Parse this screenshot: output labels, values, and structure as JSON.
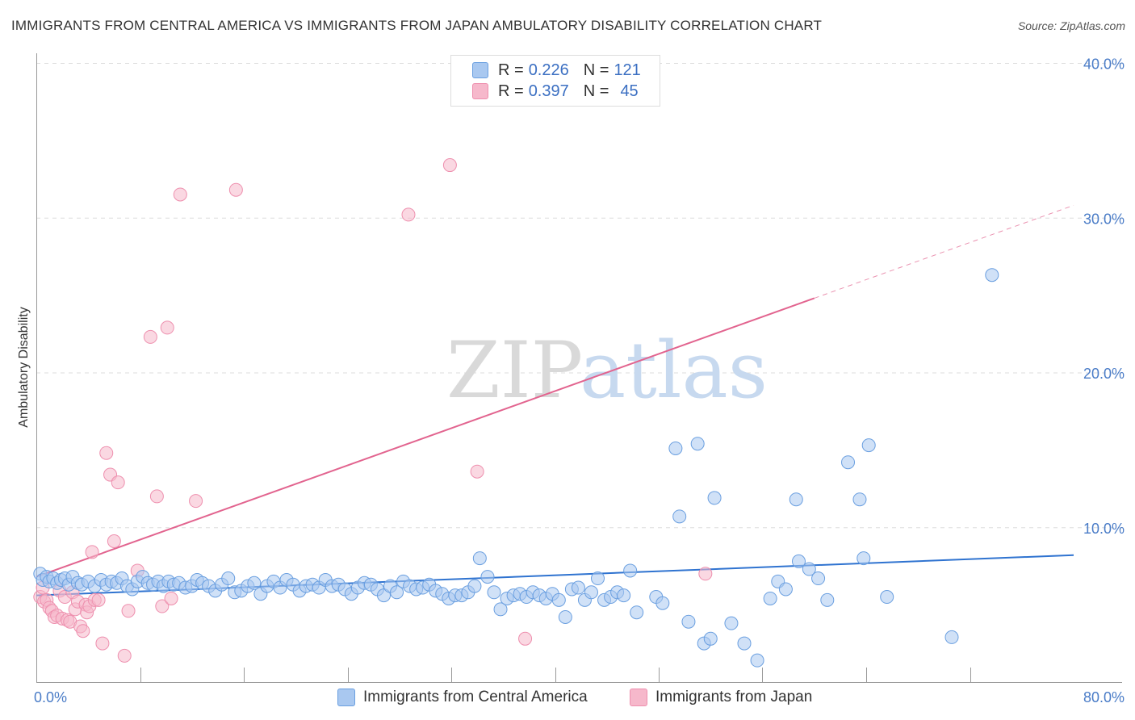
{
  "header": {
    "title": "IMMIGRANTS FROM CENTRAL AMERICA VS IMMIGRANTS FROM JAPAN AMBULATORY DISABILITY CORRELATION CHART",
    "source": "Source: ZipAtlas.com"
  },
  "legend": {
    "series1": {
      "r_label": "R =",
      "r_value": "0.226",
      "n_label": "N =",
      "n_value": "121"
    },
    "series2": {
      "r_label": "R =",
      "r_value": "0.397",
      "n_label": "N =",
      "n_value": "45"
    }
  },
  "watermark": {
    "zip": "ZIP",
    "atlas": "atlas"
  },
  "colors": {
    "blue_fill": "#a9c8f0",
    "blue_stroke": "#6a9fe0",
    "blue_line": "#2f73d0",
    "pink_fill": "#f6b8cb",
    "pink_stroke": "#ee8fae",
    "pink_line": "#e2648f",
    "grid": "#dddddd",
    "tick_text": "#4a7cc7"
  },
  "chart_data": {
    "type": "scatter",
    "title": "IMMIGRANTS FROM CENTRAL AMERICA VS IMMIGRANTS FROM JAPAN AMBULATORY DISABILITY CORRELATION CHART",
    "xlabel": "",
    "ylabel": "Ambulatory Disability",
    "xlim": [
      0,
      80
    ],
    "ylim": [
      0,
      40
    ],
    "x_tick_labels": {
      "left": "0.0%",
      "right": "80.0%"
    },
    "y_ticks": [
      10,
      20,
      30,
      40
    ],
    "y_tick_labels": [
      "10.0%",
      "20.0%",
      "30.0%",
      "40.0%"
    ],
    "legend_position": "bottom-center",
    "series": [
      {
        "name": "Immigrants from Central America",
        "color": "blue",
        "R": 0.226,
        "N": 121,
        "trend": {
          "x": [
            0,
            80
          ],
          "y": [
            5.6,
            8.2
          ],
          "style": "solid"
        },
        "points": [
          [
            0.3,
            7.0
          ],
          [
            0.5,
            6.6
          ],
          [
            0.8,
            6.8
          ],
          [
            1.0,
            6.5
          ],
          [
            1.3,
            6.7
          ],
          [
            1.6,
            6.4
          ],
          [
            1.9,
            6.6
          ],
          [
            2.2,
            6.7
          ],
          [
            2.5,
            6.3
          ],
          [
            2.8,
            6.8
          ],
          [
            3.2,
            6.4
          ],
          [
            3.5,
            6.3
          ],
          [
            4.0,
            6.5
          ],
          [
            4.5,
            6.2
          ],
          [
            5.0,
            6.6
          ],
          [
            5.4,
            6.3
          ],
          [
            5.8,
            6.5
          ],
          [
            6.2,
            6.4
          ],
          [
            6.6,
            6.7
          ],
          [
            7.0,
            6.2
          ],
          [
            7.4,
            6.0
          ],
          [
            7.8,
            6.5
          ],
          [
            8.2,
            6.8
          ],
          [
            8.6,
            6.4
          ],
          [
            9.0,
            6.3
          ],
          [
            9.4,
            6.5
          ],
          [
            9.8,
            6.2
          ],
          [
            10.2,
            6.5
          ],
          [
            10.6,
            6.3
          ],
          [
            11.0,
            6.4
          ],
          [
            11.5,
            6.1
          ],
          [
            12.0,
            6.2
          ],
          [
            12.4,
            6.6
          ],
          [
            12.8,
            6.4
          ],
          [
            13.3,
            6.2
          ],
          [
            13.8,
            5.9
          ],
          [
            14.3,
            6.3
          ],
          [
            14.8,
            6.7
          ],
          [
            15.3,
            5.8
          ],
          [
            15.8,
            5.9
          ],
          [
            16.3,
            6.2
          ],
          [
            16.8,
            6.4
          ],
          [
            17.3,
            5.7
          ],
          [
            17.8,
            6.2
          ],
          [
            18.3,
            6.5
          ],
          [
            18.8,
            6.1
          ],
          [
            19.3,
            6.6
          ],
          [
            19.8,
            6.3
          ],
          [
            20.3,
            5.9
          ],
          [
            20.8,
            6.2
          ],
          [
            21.3,
            6.3
          ],
          [
            21.8,
            6.1
          ],
          [
            22.3,
            6.6
          ],
          [
            22.8,
            6.2
          ],
          [
            23.3,
            6.3
          ],
          [
            23.8,
            6.0
          ],
          [
            24.3,
            5.7
          ],
          [
            24.8,
            6.1
          ],
          [
            25.3,
            6.4
          ],
          [
            25.8,
            6.3
          ],
          [
            26.3,
            6.0
          ],
          [
            26.8,
            5.6
          ],
          [
            27.3,
            6.2
          ],
          [
            27.8,
            5.8
          ],
          [
            28.3,
            6.5
          ],
          [
            28.8,
            6.2
          ],
          [
            29.3,
            6.0
          ],
          [
            29.8,
            6.1
          ],
          [
            30.3,
            6.3
          ],
          [
            30.8,
            5.9
          ],
          [
            31.3,
            5.7
          ],
          [
            31.8,
            5.4
          ],
          [
            32.3,
            5.6
          ],
          [
            32.8,
            5.6
          ],
          [
            33.3,
            5.8
          ],
          [
            33.8,
            6.2
          ],
          [
            34.2,
            8.0
          ],
          [
            34.8,
            6.8
          ],
          [
            35.3,
            5.8
          ],
          [
            35.8,
            4.7
          ],
          [
            36.3,
            5.4
          ],
          [
            36.8,
            5.6
          ],
          [
            37.3,
            5.7
          ],
          [
            37.8,
            5.5
          ],
          [
            38.3,
            5.8
          ],
          [
            38.8,
            5.6
          ],
          [
            39.3,
            5.4
          ],
          [
            39.8,
            5.7
          ],
          [
            40.3,
            5.3
          ],
          [
            40.8,
            4.2
          ],
          [
            41.3,
            6.0
          ],
          [
            41.8,
            6.1
          ],
          [
            42.3,
            5.3
          ],
          [
            42.8,
            5.8
          ],
          [
            43.3,
            6.7
          ],
          [
            43.8,
            5.3
          ],
          [
            44.3,
            5.5
          ],
          [
            44.8,
            5.8
          ],
          [
            45.3,
            5.6
          ],
          [
            45.8,
            7.2
          ],
          [
            46.3,
            4.5
          ],
          [
            47.8,
            5.5
          ],
          [
            48.3,
            5.1
          ],
          [
            49.3,
            15.1
          ],
          [
            49.6,
            10.7
          ],
          [
            50.3,
            3.9
          ],
          [
            51.0,
            15.4
          ],
          [
            51.5,
            2.5
          ],
          [
            52.0,
            2.8
          ],
          [
            52.3,
            11.9
          ],
          [
            53.6,
            3.8
          ],
          [
            54.6,
            2.5
          ],
          [
            55.6,
            1.4
          ],
          [
            56.6,
            5.4
          ],
          [
            57.2,
            6.5
          ],
          [
            57.8,
            6.0
          ],
          [
            58.6,
            11.8
          ],
          [
            58.8,
            7.8
          ],
          [
            59.6,
            7.3
          ],
          [
            60.3,
            6.7
          ],
          [
            61.0,
            5.3
          ],
          [
            62.6,
            14.2
          ],
          [
            63.5,
            11.8
          ],
          [
            63.8,
            8.0
          ],
          [
            64.2,
            15.3
          ],
          [
            65.6,
            5.5
          ],
          [
            70.6,
            2.9
          ],
          [
            73.7,
            26.3
          ]
        ]
      },
      {
        "name": "Immigrants from Japan",
        "color": "pink",
        "R": 0.397,
        "N": 45,
        "trend": {
          "x": [
            0,
            60
          ],
          "y": [
            6.8,
            24.8
          ],
          "style": "solid",
          "dashed_extension": {
            "x": [
              60,
              80
            ],
            "y": [
              24.8,
              30.8
            ]
          }
        },
        "points": [
          [
            0.3,
            5.5
          ],
          [
            0.5,
            6.1
          ],
          [
            0.6,
            5.2
          ],
          [
            0.8,
            5.3
          ],
          [
            1.0,
            4.8
          ],
          [
            1.2,
            4.6
          ],
          [
            1.4,
            4.2
          ],
          [
            1.6,
            4.3
          ],
          [
            1.8,
            5.9
          ],
          [
            2.0,
            4.1
          ],
          [
            2.2,
            5.5
          ],
          [
            2.4,
            4.0
          ],
          [
            2.6,
            3.9
          ],
          [
            2.8,
            5.8
          ],
          [
            3.0,
            4.7
          ],
          [
            3.2,
            5.2
          ],
          [
            3.4,
            3.6
          ],
          [
            3.6,
            3.3
          ],
          [
            3.8,
            5.0
          ],
          [
            3.9,
            4.5
          ],
          [
            4.1,
            4.9
          ],
          [
            4.3,
            8.4
          ],
          [
            4.5,
            5.3
          ],
          [
            4.8,
            5.3
          ],
          [
            5.1,
            2.5
          ],
          [
            5.4,
            14.8
          ],
          [
            5.7,
            13.4
          ],
          [
            6.0,
            9.1
          ],
          [
            6.3,
            12.9
          ],
          [
            6.8,
            1.7
          ],
          [
            7.1,
            4.6
          ],
          [
            7.8,
            7.2
          ],
          [
            8.8,
            22.3
          ],
          [
            9.3,
            12.0
          ],
          [
            9.7,
            4.9
          ],
          [
            10.1,
            22.9
          ],
          [
            10.4,
            5.4
          ],
          [
            11.1,
            31.5
          ],
          [
            12.3,
            11.7
          ],
          [
            15.4,
            31.8
          ],
          [
            28.7,
            30.2
          ],
          [
            31.9,
            33.4
          ],
          [
            34.0,
            13.6
          ],
          [
            37.7,
            2.8
          ],
          [
            51.6,
            7.0
          ]
        ]
      }
    ]
  },
  "bottom_legend": {
    "series1_label": "Immigrants from Central America",
    "series2_label": "Immigrants from Japan"
  }
}
